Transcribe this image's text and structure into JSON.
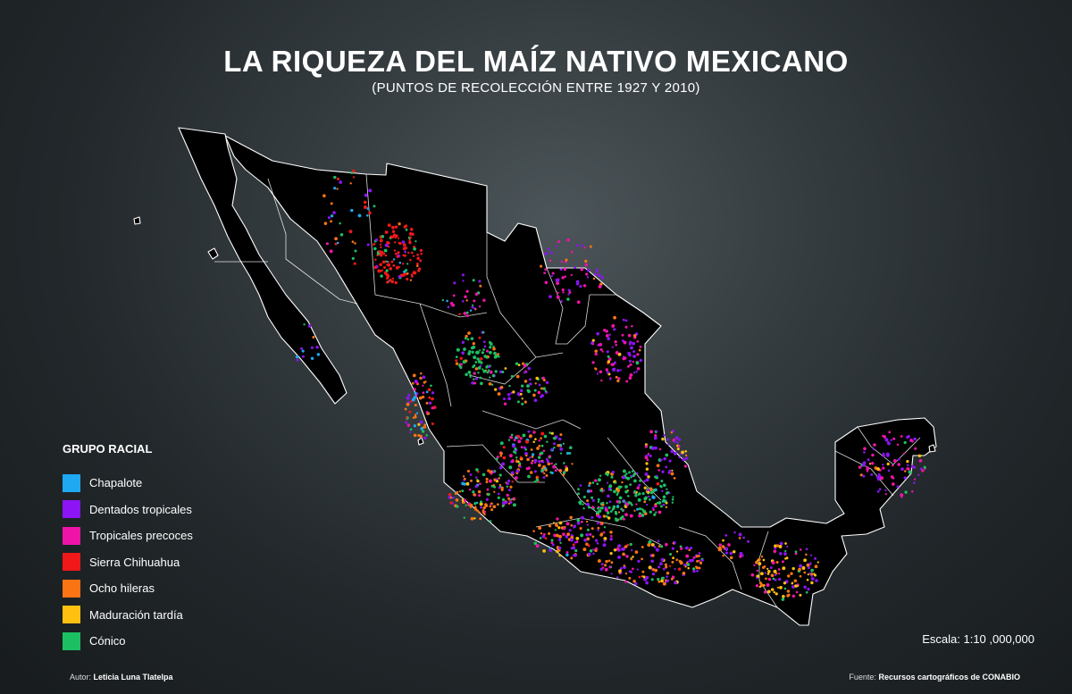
{
  "header": {
    "title": "LA RIQUEZA DEL MAÍZ NATIVO MEXICANO",
    "subtitle": "(PUNTOS DE RECOLECCIÓN ENTRE 1927 Y 2010)"
  },
  "legend": {
    "title": "GRUPO RACIAL",
    "items": [
      {
        "label": "Chapalote",
        "color": "#1ea9f2"
      },
      {
        "label": "Dentados tropicales",
        "color": "#8c14f5"
      },
      {
        "label": "Tropicales precoces",
        "color": "#ee14a8"
      },
      {
        "label": "Sierra Chihuahua",
        "color": "#f01818"
      },
      {
        "label": "Ocho hileras",
        "color": "#fa7414"
      },
      {
        "label": "Maduración tardía",
        "color": "#ffc010"
      },
      {
        "label": "Cónico",
        "color": "#1cc062"
      }
    ]
  },
  "scale": "Escala: 1:10 ,000,000",
  "footer": {
    "author_label": "Autor:",
    "author_name": "Leticia Luna Tlatelpa",
    "source_label": "Fuente:",
    "source_name": "Recursos cartográficos de CONABIO"
  },
  "map": {
    "land_color": "#000000",
    "border_color": "#ffffff"
  }
}
